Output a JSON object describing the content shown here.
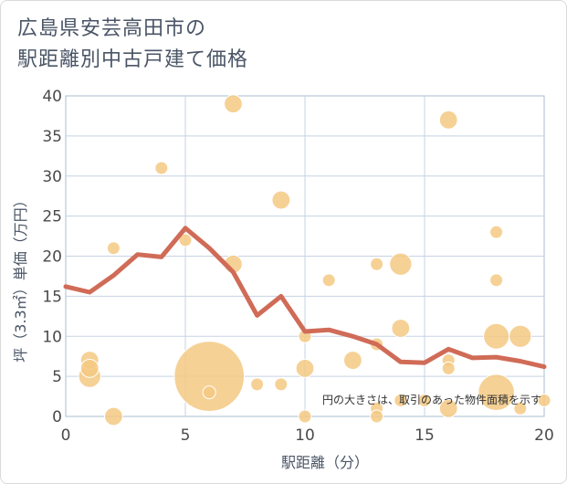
{
  "title": "広島県安芸高田市の\n駅距離別中古戸建て価格",
  "chart_data": {
    "type": "scatter",
    "title": "広島県安芸高田市の 駅距離別中古戸建て価格",
    "xlabel": "駅距離（分）",
    "ylabel": "坪（3.3㎡）単価（万円）",
    "xlim": [
      0,
      20
    ],
    "ylim": [
      0,
      40
    ],
    "xticks": [
      0,
      5,
      10,
      15,
      20
    ],
    "yticks": [
      0,
      5,
      10,
      15,
      20,
      25,
      30,
      35,
      40
    ],
    "grid": true,
    "note": "円の大きさは、取引のあった物件面積を示す",
    "colors": {
      "scatter": "#f5c983",
      "line": "#d06b57",
      "grid": "#c5d3e3",
      "frame": "#a9bccf"
    },
    "scatter_points": [
      {
        "x": 1,
        "y": 7,
        "size": 2
      },
      {
        "x": 1,
        "y": 6,
        "size": 2
      },
      {
        "x": 1,
        "y": 5,
        "size": 3
      },
      {
        "x": 2,
        "y": 21,
        "size": 1
      },
      {
        "x": 2,
        "y": 0,
        "size": 2
      },
      {
        "x": 4,
        "y": 31,
        "size": 1
      },
      {
        "x": 5,
        "y": 22,
        "size": 1
      },
      {
        "x": 6,
        "y": 5,
        "size": 30
      },
      {
        "x": 6,
        "y": 3,
        "size": 1
      },
      {
        "x": 7,
        "y": 39,
        "size": 2
      },
      {
        "x": 7,
        "y": 19,
        "size": 2
      },
      {
        "x": 8,
        "y": 4,
        "size": 1
      },
      {
        "x": 9,
        "y": 27,
        "size": 2
      },
      {
        "x": 9,
        "y": 4,
        "size": 1
      },
      {
        "x": 10,
        "y": 10,
        "size": 1
      },
      {
        "x": 10,
        "y": 6,
        "size": 2
      },
      {
        "x": 10,
        "y": 0,
        "size": 1
      },
      {
        "x": 11,
        "y": 17,
        "size": 1
      },
      {
        "x": 12,
        "y": 7,
        "size": 2
      },
      {
        "x": 13,
        "y": 19,
        "size": 1
      },
      {
        "x": 13,
        "y": 9,
        "size": 1
      },
      {
        "x": 13,
        "y": 1,
        "size": 1
      },
      {
        "x": 13,
        "y": 0,
        "size": 1
      },
      {
        "x": 14,
        "y": 19,
        "size": 3
      },
      {
        "x": 14,
        "y": 11,
        "size": 2
      },
      {
        "x": 14,
        "y": 2,
        "size": 1
      },
      {
        "x": 15,
        "y": 2,
        "size": 1
      },
      {
        "x": 16,
        "y": 37,
        "size": 2
      },
      {
        "x": 16,
        "y": 7,
        "size": 1
      },
      {
        "x": 16,
        "y": 6,
        "size": 1
      },
      {
        "x": 16,
        "y": 1,
        "size": 2
      },
      {
        "x": 18,
        "y": 23,
        "size": 1
      },
      {
        "x": 18,
        "y": 17,
        "size": 1
      },
      {
        "x": 18,
        "y": 10,
        "size": 4
      },
      {
        "x": 18,
        "y": 3,
        "size": 8
      },
      {
        "x": 19,
        "y": 10,
        "size": 3
      },
      {
        "x": 19,
        "y": 1,
        "size": 1
      },
      {
        "x": 20,
        "y": 2,
        "size": 1
      }
    ],
    "series": [
      {
        "type": "line",
        "x": [
          0,
          1,
          2,
          3,
          4,
          5,
          6,
          7,
          8,
          9,
          10,
          11,
          12,
          13,
          14,
          15,
          16,
          17,
          18,
          19,
          20
        ],
        "values": [
          16.2,
          15.5,
          17.6,
          20.2,
          19.9,
          23.5,
          21.0,
          18.0,
          12.6,
          15.0,
          10.6,
          10.8,
          10.0,
          9.0,
          6.8,
          6.7,
          8.4,
          7.3,
          7.4,
          6.9,
          6.2
        ]
      }
    ]
  }
}
